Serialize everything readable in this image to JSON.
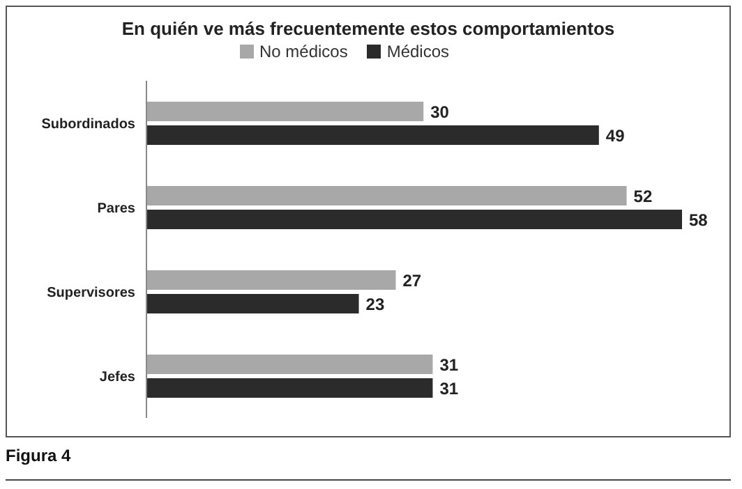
{
  "chart_data": {
    "type": "bar",
    "orientation": "horizontal",
    "title": "En quién ve más frecuentemente estos comportamientos",
    "categories": [
      "Subordinados",
      "Pares",
      "Supervisores",
      "Jefes"
    ],
    "series": [
      {
        "name": "No médicos",
        "color": "#a8a8a8",
        "values": [
          30,
          52,
          27,
          31
        ]
      },
      {
        "name": "Médicos",
        "color": "#2b2b2b",
        "values": [
          49,
          58,
          23,
          31
        ]
      }
    ],
    "data_labels": true,
    "legend": "top",
    "tick_labels": "y",
    "annotations": [
      "Figura 4"
    ]
  }
}
